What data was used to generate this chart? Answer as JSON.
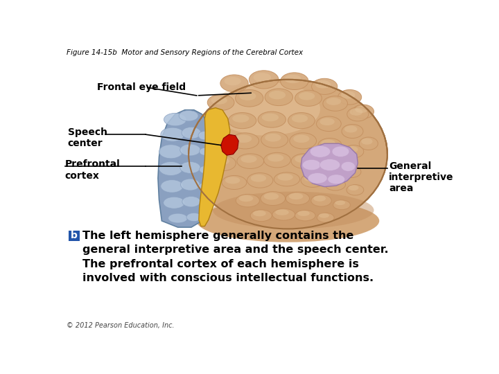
{
  "figure_title": "Figure 14-15b  Motor and Sensory Regions of the Cerebral Cortex",
  "figure_title_fontsize": 7.5,
  "labels": {
    "frontal_eye_field": "Frontal eye field",
    "speech_center": "Speech\ncenter",
    "prefrontal_cortex": "Prefrontal\ncortex",
    "general_interpretive": "General\ninterpretive\narea"
  },
  "body_text_b_label": "b",
  "body_text": "The left hemisphere generally contains the\ngeneral interpretive area and the speech center.\nThe prefrontal cortex of each hemisphere is\ninvolved with conscious intellectual functions.",
  "copyright": "© 2012 Pearson Education, Inc.",
  "bg_color": "#ffffff",
  "brain_base": "#D4A87A",
  "brain_light": "#E8C9A0",
  "brain_dark": "#B8845A",
  "brain_shadow": "#C49060",
  "brain_edge": "#A07040",
  "prefrontal_base": "#8AA0C0",
  "prefrontal_light": "#B0C4DC",
  "prefrontal_dark": "#6080A0",
  "speech_color": "#CC1100",
  "speech_edge": "#880000",
  "yellow_color": "#E8B830",
  "yellow_edge": "#B08010",
  "general_interp_base": "#C0A0C8",
  "general_interp_light": "#D8C0E0",
  "general_interp_dark": "#9878A8",
  "b_box_color": "#2255AA",
  "b_box_text_color": "#ffffff",
  "label_fontsize": 10,
  "body_fontsize": 11.5,
  "copyright_fontsize": 7,
  "line_color": "#000000",
  "line_lw": 1.2
}
